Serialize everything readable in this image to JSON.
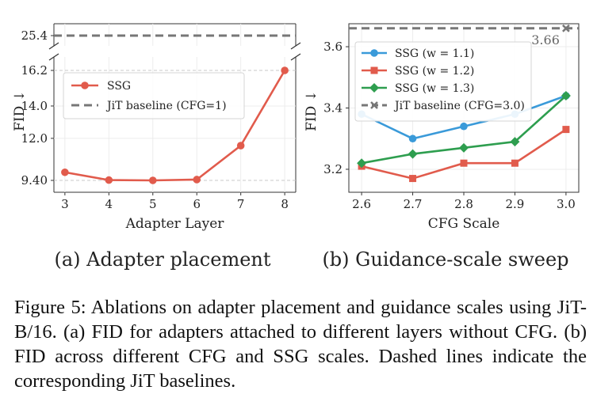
{
  "chart_data": [
    {
      "type": "line",
      "panel_caption": "(a) Adapter placement",
      "xlabel": "Adapter Layer",
      "ylabel": "FID ↓",
      "x": [
        3,
        4,
        5,
        6,
        7,
        8
      ],
      "x_ticks": [
        "3",
        "4",
        "5",
        "6",
        "7",
        "8"
      ],
      "y_ticks_lower": [
        "9.40",
        "12.0",
        "14.0",
        "16.2"
      ],
      "y_ticks_upper": [
        "25.4"
      ],
      "axis_break": true,
      "grid": true,
      "legend_position": "upper-left",
      "series": [
        {
          "name": "SSG",
          "values": [
            9.9,
            9.42,
            9.4,
            9.45,
            11.55,
            16.2
          ],
          "color": "#e15b4c",
          "marker": "circle"
        }
      ],
      "baselines": [
        {
          "name": "JiT baseline (CFG=1)",
          "value": 25.4,
          "color": "#777777",
          "style": "dashed"
        }
      ]
    },
    {
      "type": "line",
      "panel_caption": "(b) Guidance-scale sweep",
      "xlabel": "CFG Scale",
      "ylabel": "FID ↓",
      "x": [
        2.6,
        2.7,
        2.8,
        2.9,
        3.0
      ],
      "x_ticks": [
        "2.6",
        "2.7",
        "2.8",
        "2.9",
        "3.0"
      ],
      "y_ticks": [
        "3.2",
        "3.4",
        "3.6"
      ],
      "ylim": [
        3.125,
        3.675
      ],
      "grid": true,
      "legend_position": "upper-left",
      "series": [
        {
          "name": "SSG (w = 1.1)",
          "values": [
            3.38,
            3.3,
            3.34,
            3.38,
            3.44
          ],
          "color": "#3a9ad9",
          "marker": "circle"
        },
        {
          "name": "SSG (w = 1.2)",
          "values": [
            3.21,
            3.17,
            3.22,
            3.22,
            3.33
          ],
          "color": "#e15b4c",
          "marker": "square"
        },
        {
          "name": "SSG (w = 1.3)",
          "values": [
            3.22,
            3.25,
            3.27,
            3.29,
            3.44
          ],
          "color": "#2e9e4f",
          "marker": "diamond"
        }
      ],
      "baselines": [
        {
          "name": "JiT baseline (CFG=3.0)",
          "value": 3.66,
          "label": "3.66",
          "color": "#777777",
          "style": "dashed",
          "marker": "x"
        }
      ]
    }
  ],
  "caption": "Figure 5: Ablations on adapter placement and guidance scales using JiT-B/16. (a) FID for adapters attached to different layers without CFG. (b) FID across different CFG and SSG scales. Dashed lines indicate the corresponding JiT baselines."
}
